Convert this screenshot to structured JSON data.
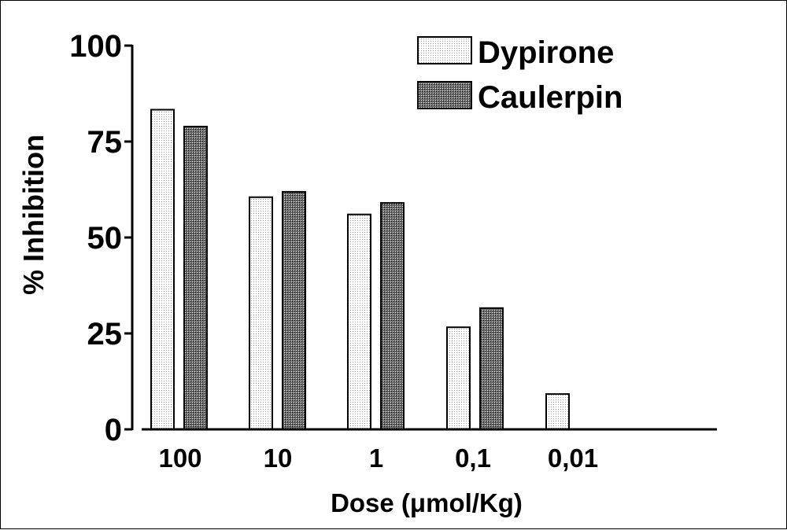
{
  "chart_data": {
    "type": "bar",
    "xlabel": "Dose (μmol/Kg)",
    "ylabel": "% Inhibition",
    "ylim": [
      0,
      100
    ],
    "yticks": [
      "0",
      "25",
      "50",
      "75",
      "100"
    ],
    "categories": [
      "100",
      "10",
      "1",
      "0,1",
      "0,01"
    ],
    "series": [
      {
        "name": "Dypirone",
        "values": [
          83.3,
          60.5,
          56.0,
          26.6,
          9.2
        ],
        "fill": "#f2f2f2"
      },
      {
        "name": "Caulerpin",
        "values": [
          78.9,
          61.9,
          59.0,
          31.6,
          0
        ],
        "fill": "#8a8a8a"
      }
    ],
    "legend": "top-right",
    "grid": false
  }
}
